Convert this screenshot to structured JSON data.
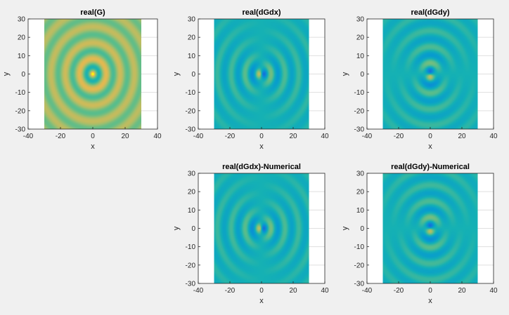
{
  "figure": {
    "background": "#f0f0f0",
    "colormap": "parula"
  },
  "chart_data": [
    {
      "type": "heatmap",
      "title": "real(G)",
      "xlabel": "x",
      "ylabel": "y",
      "xlim": [
        -40,
        40
      ],
      "ylim": [
        -30,
        30
      ],
      "data_extent": [
        -30,
        30
      ],
      "xticks": [
        -40,
        -20,
        0,
        20,
        40
      ],
      "yticks": [
        -30,
        -20,
        -10,
        0,
        10,
        20,
        30
      ],
      "xtick_labels": [
        "-40",
        "-20",
        "0",
        "20",
        "40"
      ],
      "ytick_labels": [
        "-30",
        "-20",
        "-10",
        "0",
        "10",
        "20",
        "30"
      ],
      "field": "G"
    },
    {
      "type": "heatmap",
      "title": "real(dGdx)",
      "xlabel": "x",
      "ylabel": "y",
      "xlim": [
        -40,
        40
      ],
      "ylim": [
        -30,
        30
      ],
      "data_extent": [
        -30,
        30
      ],
      "xticks": [
        -40,
        -20,
        0,
        20,
        40
      ],
      "yticks": [
        -30,
        -20,
        -10,
        0,
        10,
        20,
        30
      ],
      "xtick_labels": [
        "-40",
        "-20",
        "0",
        "20",
        "40"
      ],
      "ytick_labels": [
        "-30",
        "-20",
        "-10",
        "0",
        "10",
        "20",
        "30"
      ],
      "field": "dGdx"
    },
    {
      "type": "heatmap",
      "title": "real(dGdy)",
      "xlabel": "x",
      "ylabel": "y",
      "xlim": [
        -40,
        40
      ],
      "ylim": [
        -30,
        30
      ],
      "data_extent": [
        -30,
        30
      ],
      "xticks": [
        -40,
        -20,
        0,
        20,
        40
      ],
      "yticks": [
        -30,
        -20,
        -10,
        0,
        10,
        20,
        30
      ],
      "xtick_labels": [
        "-40",
        "-20",
        "0",
        "20",
        "40"
      ],
      "ytick_labels": [
        "-30",
        "-20",
        "-10",
        "0",
        "10",
        "20",
        "30"
      ],
      "field": "dGdy"
    },
    {
      "type": "heatmap",
      "title": "real(dGdx)-Numerical",
      "xlabel": "x",
      "ylabel": "y",
      "xlim": [
        -40,
        40
      ],
      "ylim": [
        -30,
        30
      ],
      "data_extent": [
        -30,
        30
      ],
      "xticks": [
        -40,
        -20,
        0,
        20,
        40
      ],
      "yticks": [
        -30,
        -20,
        -10,
        0,
        10,
        20,
        30
      ],
      "xtick_labels": [
        "-40",
        "-20",
        "0",
        "20",
        "40"
      ],
      "ytick_labels": [
        "-30",
        "-20",
        "-10",
        "0",
        "10",
        "20",
        "30"
      ],
      "field": "dGdx"
    },
    {
      "type": "heatmap",
      "title": "real(dGdy)-Numerical",
      "xlabel": "x",
      "ylabel": "y",
      "xlim": [
        -40,
        40
      ],
      "ylim": [
        -30,
        30
      ],
      "data_extent": [
        -30,
        30
      ],
      "xticks": [
        -40,
        -20,
        0,
        20,
        40
      ],
      "yticks": [
        -30,
        -20,
        -10,
        0,
        10,
        20,
        30
      ],
      "xtick_labels": [
        "-40",
        "-20",
        "0",
        "20",
        "40"
      ],
      "ytick_labels": [
        "-30",
        "-20",
        "-10",
        "0",
        "10",
        "20",
        "30"
      ],
      "field": "dGdy"
    }
  ]
}
